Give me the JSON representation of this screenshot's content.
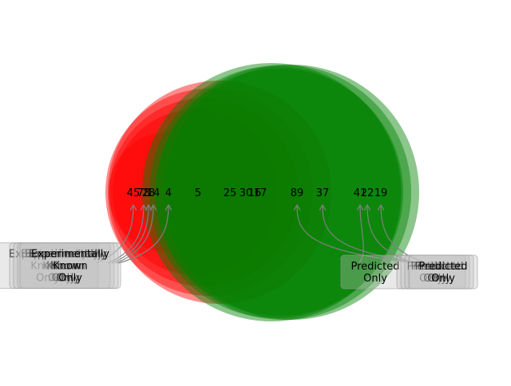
{
  "chart_data": {
    "type": "venn",
    "colors": {
      "left_set": "#ff0000",
      "right_set": "#008000",
      "callout_box": "#c0c0c0",
      "arrow": "#808080"
    },
    "pairs": [
      {
        "left_only": 45,
        "overlap": 5,
        "right_only": 41
      },
      {
        "left_only": 78,
        "overlap": 25,
        "right_only": 22
      },
      {
        "left_only": 28,
        "overlap": 30,
        "right_only": 89
      },
      {
        "left_only": 14,
        "overlap": 16,
        "right_only": 37
      },
      {
        "left_only": 4,
        "overlap": 17,
        "right_only": 19
      }
    ],
    "left_callout_label": "Experimentally Known Only",
    "right_callout_label": "Predicted Only"
  }
}
